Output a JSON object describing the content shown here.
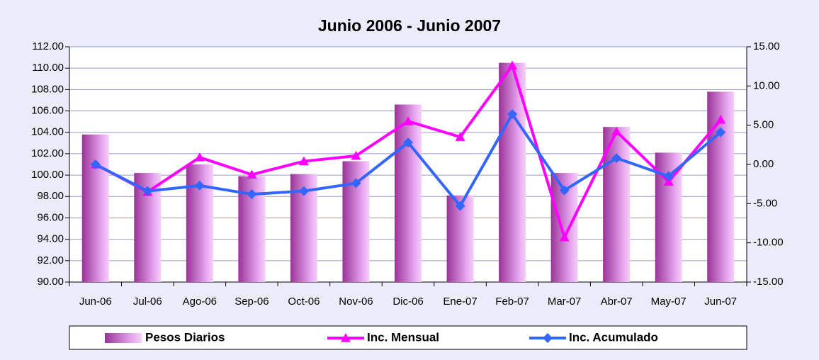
{
  "chart_data": {
    "type": "combo",
    "title": "Junio 2006 - Junio 2007",
    "categories": [
      "Jun-06",
      "Jul-06",
      "Ago-06",
      "Sep-06",
      "Oct-06",
      "Nov-06",
      "Dic-06",
      "Ene-07",
      "Feb-07",
      "Mar-07",
      "Abr-07",
      "May-07",
      "Jun-07"
    ],
    "series": [
      {
        "name": "Pesos Diarios",
        "type": "bar",
        "color": "#993399",
        "values": [
          103.8,
          100.2,
          101.0,
          99.9,
          100.1,
          101.3,
          106.6,
          98.1,
          110.5,
          100.2,
          104.5,
          102.1,
          107.8
        ]
      },
      {
        "name": "Inc. Mensual",
        "type": "line",
        "axis": "y2",
        "marker": "triangle",
        "color": "#ff00ff",
        "values": [
          0,
          -3.5,
          0.9,
          -1.3,
          0.4,
          1.1,
          5.5,
          3.5,
          12.6,
          -9.3,
          4.2,
          -2.2,
          5.7
        ]
      },
      {
        "name": "Inc. Acumulado",
        "type": "line",
        "axis": "y2",
        "marker": "diamond",
        "color": "#3366ff",
        "values": [
          0,
          -3.4,
          -2.7,
          -3.8,
          -3.4,
          -2.4,
          2.8,
          -5.3,
          6.4,
          -3.3,
          0.8,
          -1.5,
          4.1
        ]
      }
    ],
    "ylim": [
      90,
      112
    ],
    "yticks": [
      {
        "value": 90,
        "label": "90.00"
      },
      {
        "value": 92,
        "label": "92.00"
      },
      {
        "value": 94,
        "label": "94.00"
      },
      {
        "value": 96,
        "label": "96.00"
      },
      {
        "value": 98,
        "label": "98.00"
      },
      {
        "value": 100,
        "label": "100.00"
      },
      {
        "value": 102,
        "label": "102.00"
      },
      {
        "value": 104,
        "label": "104.00"
      },
      {
        "value": 106,
        "label": "106.00"
      },
      {
        "value": 108,
        "label": "108.00"
      },
      {
        "value": 110,
        "label": "110.00"
      },
      {
        "value": 112,
        "label": "112.00"
      }
    ],
    "y2lim": [
      -15,
      15
    ],
    "y2ticks": [
      {
        "value": -15,
        "label": "-15.00"
      },
      {
        "value": -10,
        "label": "-10.00"
      },
      {
        "value": -5,
        "label": "-5.00"
      },
      {
        "value": 0,
        "label": "0.00"
      },
      {
        "value": 5,
        "label": "5.00"
      },
      {
        "value": 10,
        "label": "10.00"
      },
      {
        "value": 15,
        "label": "15.00"
      }
    ],
    "grid": true,
    "legend": "bottom"
  }
}
